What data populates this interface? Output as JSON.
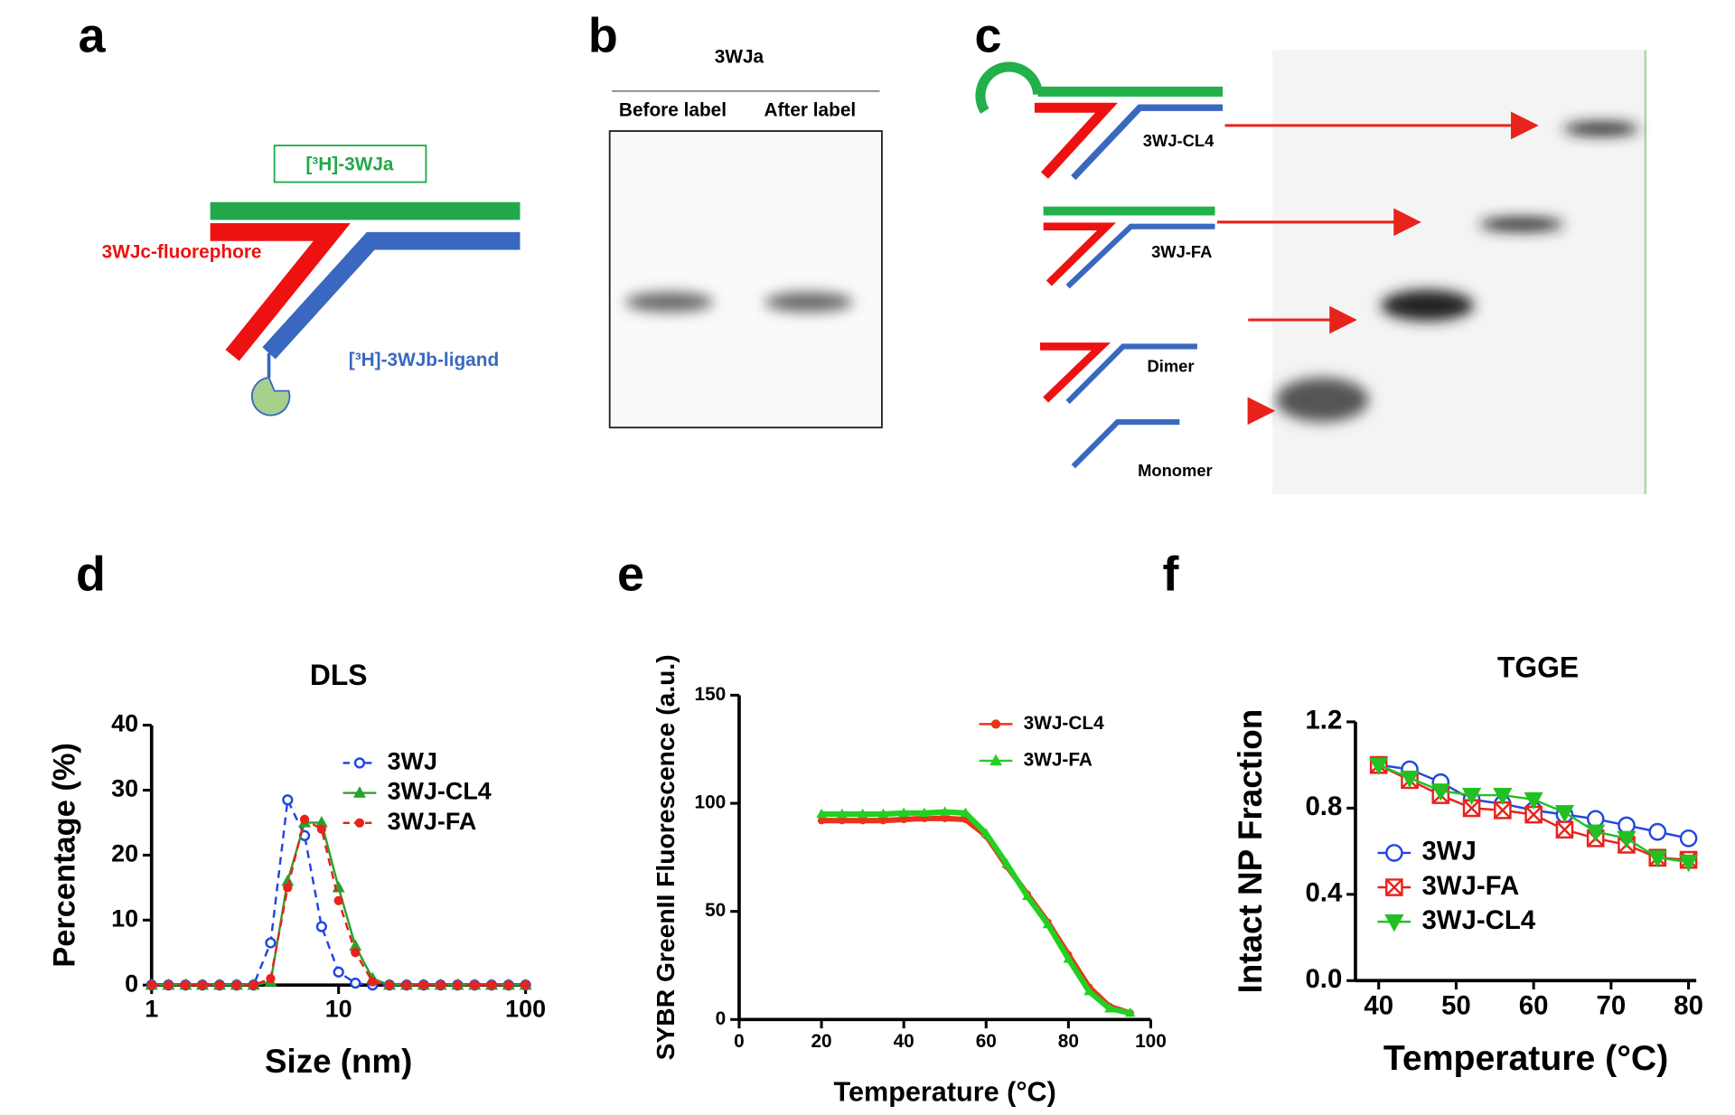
{
  "panel_a": {
    "label": "a",
    "strand_a": "[³H]-3WJa",
    "strand_c": "3WJc-fluorephore",
    "strand_b": "[³H]-3WJb-ligand"
  },
  "panel_b": {
    "label": "b",
    "title": "3WJa",
    "lanes": [
      "Before label",
      "After label"
    ]
  },
  "panel_c": {
    "label": "c",
    "constructs": [
      "3WJ-CL4",
      "3WJ-FA",
      "Dimer",
      "Monomer"
    ]
  },
  "chart_data": [
    {
      "type": "line",
      "panel_label": "d",
      "title": "DLS",
      "xlabel": "Size (nm)",
      "ylabel": "Percentage (%)",
      "xscale": "log",
      "xlim": [
        1,
        100
      ],
      "xticks": [
        1,
        10,
        100
      ],
      "ylim": [
        0,
        40
      ],
      "yticks": [
        0,
        10,
        20,
        30,
        40
      ],
      "x": [
        1,
        1.23,
        1.52,
        1.87,
        2.31,
        2.85,
        3.51,
        4.33,
        5.34,
        6.58,
        8.11,
        10,
        12.3,
        15.2,
        18.7,
        23.1,
        28.5,
        35.1,
        43.3,
        53.4,
        65.8,
        81.1,
        100
      ],
      "series": [
        {
          "name": "3WJ",
          "color": "#2047e0",
          "marker": "circle",
          "dash": true,
          "values": [
            0,
            0,
            0,
            0,
            0,
            0,
            0,
            6.5,
            28.5,
            23,
            9,
            2,
            0.3,
            0,
            0,
            0,
            0,
            0,
            0,
            0,
            0,
            0,
            0
          ]
        },
        {
          "name": "3WJ-CL4",
          "color": "#2ca02c",
          "marker": "triangle",
          "dash": false,
          "values": [
            0,
            0,
            0,
            0,
            0,
            0,
            0,
            0.5,
            16,
            25,
            25,
            15,
            6,
            1,
            0,
            0,
            0,
            0,
            0,
            0,
            0,
            0,
            0
          ]
        },
        {
          "name": "3WJ-FA",
          "color": "#e8231c",
          "marker": "dot",
          "dash": true,
          "values": [
            0,
            0,
            0,
            0,
            0,
            0,
            0,
            1,
            15,
            25.5,
            24,
            13,
            5,
            0.5,
            0,
            0,
            0,
            0,
            0,
            0,
            0,
            0,
            0
          ]
        }
      ]
    },
    {
      "type": "line",
      "panel_label": "e",
      "xlabel": "Temperature (°C)",
      "ylabel": "SYBR GreenII Fluorescence (a.u.)",
      "xlim": [
        0,
        100
      ],
      "xticks": [
        0,
        20,
        40,
        60,
        80,
        100
      ],
      "ylim": [
        0,
        150
      ],
      "yticks": [
        0,
        50,
        100,
        150
      ],
      "x": [
        20,
        25,
        30,
        35,
        40,
        45,
        50,
        55,
        60,
        65,
        70,
        75,
        80,
        85,
        90,
        95
      ],
      "series": [
        {
          "name": "3WJ-CL4",
          "color": "#e8341c",
          "marker": "dot",
          "dash": false,
          "values": [
            92,
            92,
            92,
            92,
            92.5,
            93,
            93,
            92.5,
            85,
            71,
            58,
            45,
            30,
            15,
            6,
            3
          ]
        },
        {
          "name": "3WJ-FA",
          "color": "#22d022",
          "marker": "triangle",
          "dash": false,
          "values": [
            95,
            95,
            95,
            95,
            95.5,
            95.5,
            96,
            95.5,
            86,
            72,
            57,
            44,
            28,
            13,
            5,
            3
          ]
        }
      ]
    },
    {
      "type": "line",
      "panel_label": "f",
      "title": "TGGE",
      "xlabel": "Temperature (°C)",
      "ylabel": "Intact NP Fraction",
      "xlim": [
        37,
        81
      ],
      "xticks": [
        40,
        50,
        60,
        70,
        80
      ],
      "ylim": [
        0,
        1.2
      ],
      "yticks": [
        {
          "value": 0,
          "label": "0.0"
        },
        0.4,
        0.8,
        1.2
      ],
      "x": [
        40,
        44,
        48,
        52,
        56,
        60,
        64,
        68,
        72,
        76,
        80
      ],
      "series": [
        {
          "name": "3WJ",
          "color": "#2047e0",
          "marker": "circle",
          "dash": false,
          "values": [
            1.0,
            0.98,
            0.92,
            0.84,
            0.82,
            0.79,
            0.77,
            0.75,
            0.72,
            0.69,
            0.66
          ]
        },
        {
          "name": "3WJ-FA",
          "color": "#e8231c",
          "marker": "square-x",
          "dash": false,
          "values": [
            1.0,
            0.93,
            0.86,
            0.8,
            0.79,
            0.77,
            0.7,
            0.66,
            0.63,
            0.57,
            0.56
          ]
        },
        {
          "name": "3WJ-CL4",
          "color": "#22c022",
          "marker": "triangle-down",
          "dash": false,
          "values": [
            1.0,
            0.94,
            0.88,
            0.86,
            0.86,
            0.84,
            0.78,
            0.69,
            0.66,
            0.57,
            0.55
          ]
        }
      ]
    }
  ]
}
